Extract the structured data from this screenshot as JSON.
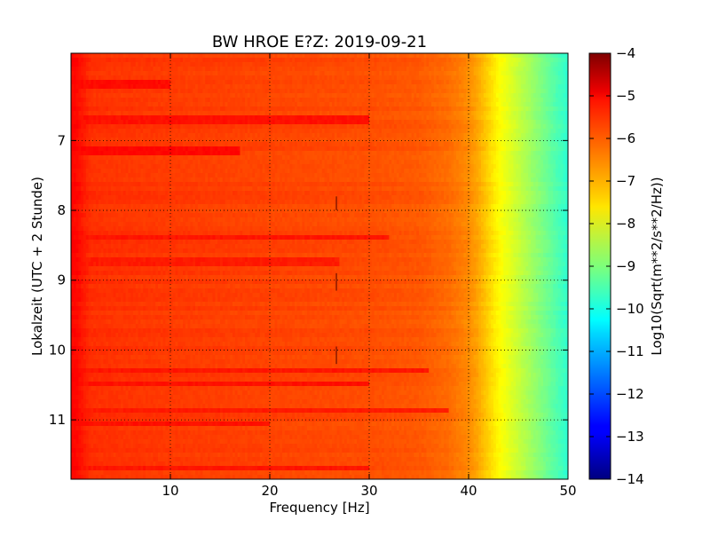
{
  "chart_data": {
    "type": "heatmap",
    "title": "BW HROE E?Z: 2019-09-21",
    "xlabel": "Frequency [Hz]",
    "ylabel": "Lokalzeit (UTC + 2 Stunde)",
    "xlim": [
      0,
      50
    ],
    "ylim": [
      5.75,
      11.85
    ],
    "y_inverted": true,
    "x_ticks": [
      10,
      20,
      30,
      40,
      50
    ],
    "x_tick_labels": [
      "10",
      "20",
      "30",
      "40",
      "50"
    ],
    "y_ticks": [
      7,
      8,
      9,
      10,
      11
    ],
    "y_tick_labels": [
      "7",
      "8",
      "9",
      "10",
      "11"
    ],
    "grid": true,
    "colormap": "jet",
    "colorbar": {
      "label": "Log10(Sqrt(m**2/s**2/Hz))",
      "min": -14,
      "max": -4,
      "ticks": [
        -4,
        -5,
        -6,
        -7,
        -8,
        -9,
        -10,
        -11,
        -12,
        -13,
        -14
      ],
      "tick_labels": [
        "−4",
        "−5",
        "−6",
        "−7",
        "−8",
        "−9",
        "−10",
        "−11",
        "−12",
        "−13",
        "−14"
      ]
    },
    "spectral_profile": {
      "frequency": [
        0,
        0.5,
        2,
        5,
        10,
        20,
        30,
        35,
        38,
        40,
        41,
        42,
        43,
        44,
        45,
        46,
        47,
        48,
        49,
        50
      ],
      "level": [
        -5.3,
        -5.3,
        -5.7,
        -5.75,
        -5.8,
        -5.9,
        -6.0,
        -6.1,
        -6.3,
        -6.6,
        -6.9,
        -7.3,
        -7.7,
        -8.0,
        -8.3,
        -8.6,
        -8.9,
        -9.2,
        -9.5,
        -9.8
      ]
    },
    "band_levels": [
      {
        "time": 6.2,
        "fmax": 10,
        "level": -5.35
      },
      {
        "time": 6.7,
        "fmax": 30,
        "level": -5.4
      },
      {
        "time": 7.15,
        "fmax": 17,
        "level": -5.3
      },
      {
        "time": 8.38,
        "fmax": 32,
        "level": -5.45
      },
      {
        "time": 8.75,
        "fmax": 27,
        "level": -5.5
      },
      {
        "time": 10.28,
        "fmax": 36,
        "level": -5.45
      },
      {
        "time": 10.48,
        "fmax": 30,
        "level": -5.4
      },
      {
        "time": 10.85,
        "fmax": 38,
        "level": -5.5
      },
      {
        "time": 11.05,
        "fmax": 20,
        "level": -5.4
      },
      {
        "time": 11.68,
        "fmax": 30,
        "level": -5.45
      }
    ],
    "transients": [
      {
        "frequency": 26.7,
        "time_start": 7.8,
        "time_end": 8.0
      },
      {
        "frequency": 26.7,
        "time_start": 8.9,
        "time_end": 9.15
      },
      {
        "frequency": 26.7,
        "time_start": 9.95,
        "time_end": 10.2
      }
    ]
  }
}
